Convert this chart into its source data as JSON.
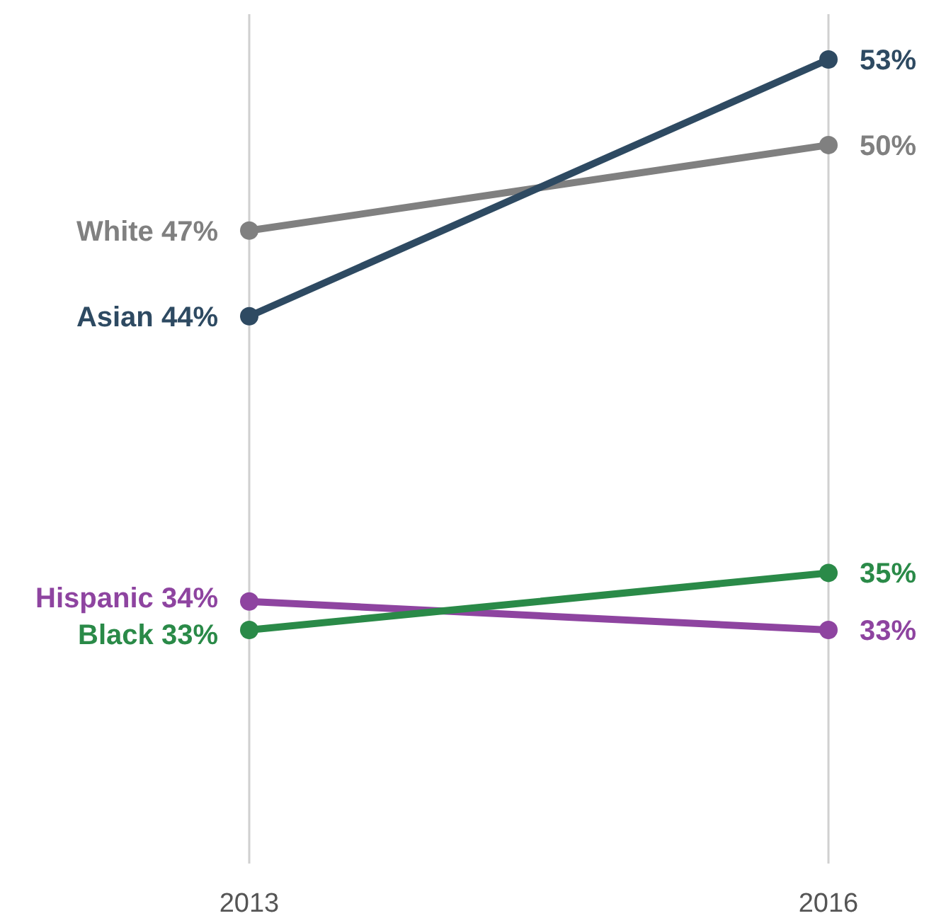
{
  "chart_data": {
    "type": "line",
    "categories": [
      "2013",
      "2016"
    ],
    "grid": "x",
    "marker": "circle",
    "line_style": "solid",
    "tick_labels": "x",
    "series": [
      {
        "name": "White",
        "color": "#808080",
        "values": [
          47,
          50
        ],
        "value_labels": [
          "47%",
          "50%"
        ]
      },
      {
        "name": "Asian",
        "color": "#2e4a62",
        "values": [
          44,
          53
        ],
        "value_labels": [
          "44%",
          "53%"
        ]
      },
      {
        "name": "Hispanic",
        "color": "#8e44a0",
        "values": [
          34,
          33
        ],
        "value_labels": [
          "34%",
          "33%"
        ]
      },
      {
        "name": "Black",
        "color": "#2a8a48",
        "values": [
          33,
          35
        ],
        "value_labels": [
          "33%",
          "35%"
        ]
      }
    ]
  }
}
